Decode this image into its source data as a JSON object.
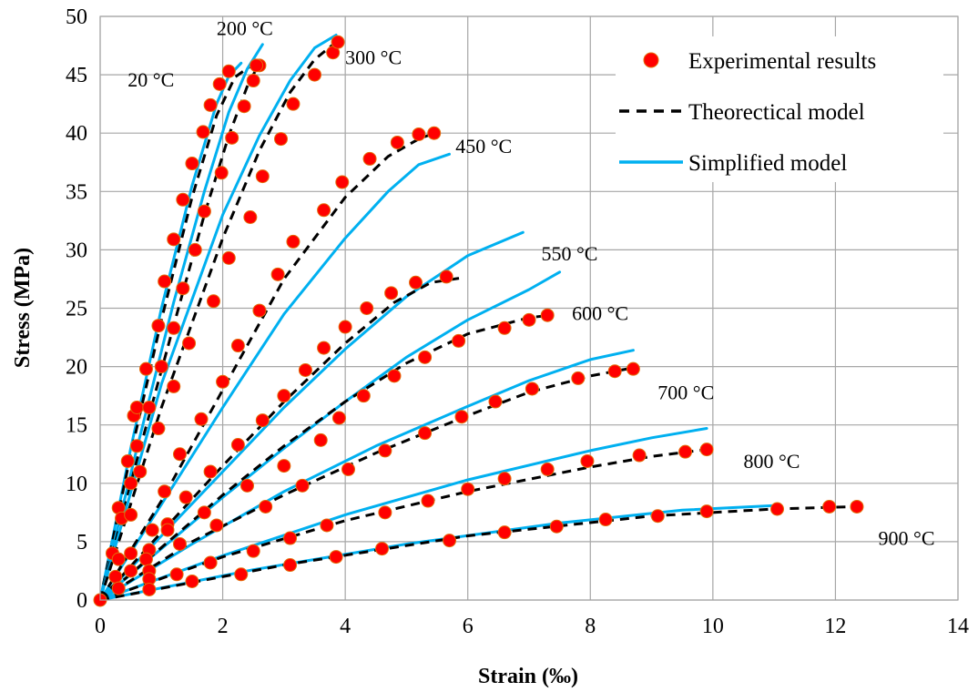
{
  "chart_data": {
    "type": "scatter",
    "title": "",
    "xlabel": "Strain (‰)",
    "ylabel": "Stress (MPa)",
    "xlim": [
      0,
      14
    ],
    "ylim": [
      0,
      50
    ],
    "xticks": [
      0,
      2,
      4,
      6,
      8,
      10,
      12,
      14
    ],
    "yticks": [
      0,
      5,
      10,
      15,
      20,
      25,
      30,
      35,
      40,
      45,
      50
    ],
    "grid": true,
    "legend_position": "top-right",
    "legend": [
      {
        "label": "Experimental results",
        "style": "marker"
      },
      {
        "label": "Theorectical model",
        "style": "dashed"
      },
      {
        "label": "Simplified model",
        "style": "solid"
      }
    ],
    "colors": {
      "experimental": "#ff0000",
      "experimental_edge": "#e36c09",
      "theoretical": "#000000",
      "simplified": "#00b0f0",
      "grid": "#a6a6a6"
    },
    "curve_labels": [
      {
        "text": "20 °C",
        "x": 0.45,
        "y": 44.0
      },
      {
        "text": "200 °C",
        "x": 1.9,
        "y": 48.4
      },
      {
        "text": "300 °C",
        "x": 4.0,
        "y": 45.9
      },
      {
        "text": "450 °C",
        "x": 5.8,
        "y": 38.3
      },
      {
        "text": "550 °C",
        "x": 7.2,
        "y": 29.1
      },
      {
        "text": "600 °C",
        "x": 7.7,
        "y": 24.0
      },
      {
        "text": "700 °C",
        "x": 9.1,
        "y": 17.2
      },
      {
        "text": "800 °C",
        "x": 10.5,
        "y": 11.3
      },
      {
        "text": "900 °C",
        "x": 12.7,
        "y": 4.7
      }
    ],
    "series": [
      {
        "temperature": "20 °C",
        "experimental": [
          [
            0,
            0
          ],
          [
            0.2,
            4.0
          ],
          [
            0.3,
            7.9
          ],
          [
            0.45,
            11.9
          ],
          [
            0.55,
            15.8
          ],
          [
            0.6,
            16.5
          ],
          [
            0.75,
            19.8
          ],
          [
            0.95,
            23.5
          ],
          [
            1.05,
            27.3
          ],
          [
            1.2,
            30.9
          ],
          [
            1.35,
            34.3
          ],
          [
            1.5,
            37.4
          ],
          [
            1.68,
            40.1
          ],
          [
            1.8,
            42.4
          ],
          [
            1.95,
            44.2
          ],
          [
            2.1,
            45.3
          ],
          [
            2.6,
            45.8
          ]
        ],
        "theoretical": [
          [
            0,
            0
          ],
          [
            0.5,
            12.5
          ],
          [
            1.0,
            24.0
          ],
          [
            1.5,
            34.5
          ],
          [
            1.9,
            41.5
          ],
          [
            2.2,
            44.8
          ],
          [
            2.5,
            45.9
          ]
        ],
        "simplified": [
          [
            0,
            0
          ],
          [
            0.5,
            13.0
          ],
          [
            1.0,
            25.0
          ],
          [
            1.5,
            35.5
          ],
          [
            1.9,
            42.5
          ],
          [
            2.1,
            44.9
          ],
          [
            2.3,
            46.0
          ]
        ]
      },
      {
        "temperature": "200 °C",
        "experimental": [
          [
            0.35,
            7.0
          ],
          [
            0.5,
            10.0
          ],
          [
            0.6,
            13.2
          ],
          [
            0.8,
            16.5
          ],
          [
            1.0,
            20.0
          ],
          [
            1.2,
            23.3
          ],
          [
            1.35,
            26.7
          ],
          [
            1.55,
            30.0
          ],
          [
            1.7,
            33.3
          ],
          [
            1.98,
            36.6
          ],
          [
            2.15,
            39.6
          ],
          [
            2.35,
            42.3
          ],
          [
            2.5,
            44.5
          ],
          [
            2.55,
            45.8
          ]
        ],
        "theoretical": [
          [
            0,
            0
          ],
          [
            0.6,
            12.0
          ],
          [
            1.2,
            23.5
          ],
          [
            1.7,
            33.0
          ],
          [
            2.1,
            39.8
          ],
          [
            2.4,
            44.0
          ],
          [
            2.55,
            45.5
          ]
        ],
        "simplified": [
          [
            0,
            0
          ],
          [
            0.6,
            13.0
          ],
          [
            1.2,
            25.5
          ],
          [
            1.7,
            35.0
          ],
          [
            2.1,
            41.8
          ],
          [
            2.4,
            45.5
          ],
          [
            2.65,
            47.6
          ]
        ]
      },
      {
        "temperature": "300 °C",
        "experimental": [
          [
            0.3,
            3.5
          ],
          [
            0.5,
            7.3
          ],
          [
            0.65,
            11.0
          ],
          [
            0.95,
            14.7
          ],
          [
            1.2,
            18.3
          ],
          [
            1.45,
            22.0
          ],
          [
            1.85,
            25.6
          ],
          [
            2.1,
            29.3
          ],
          [
            2.45,
            32.8
          ],
          [
            2.65,
            36.3
          ],
          [
            2.95,
            39.5
          ],
          [
            3.15,
            42.5
          ],
          [
            3.5,
            45.0
          ],
          [
            3.8,
            46.9
          ],
          [
            3.88,
            47.8
          ]
        ],
        "theoretical": [
          [
            0,
            0
          ],
          [
            1.0,
            16.5
          ],
          [
            2.0,
            31.0
          ],
          [
            2.6,
            38.5
          ],
          [
            3.1,
            43.5
          ],
          [
            3.5,
            46.3
          ],
          [
            3.85,
            47.8
          ]
        ],
        "simplified": [
          [
            0,
            0
          ],
          [
            1.0,
            18.5
          ],
          [
            2.0,
            33.0
          ],
          [
            2.6,
            39.8
          ],
          [
            3.1,
            44.5
          ],
          [
            3.5,
            47.3
          ],
          [
            3.85,
            48.4
          ]
        ]
      },
      {
        "temperature": "450 °C",
        "experimental": [
          [
            0.25,
            2.0
          ],
          [
            0.5,
            4.0
          ],
          [
            0.85,
            6.0
          ],
          [
            1.05,
            9.3
          ],
          [
            1.3,
            12.5
          ],
          [
            1.65,
            15.5
          ],
          [
            2.0,
            18.7
          ],
          [
            2.25,
            21.8
          ],
          [
            2.6,
            24.8
          ],
          [
            2.9,
            27.9
          ],
          [
            3.15,
            30.7
          ],
          [
            3.65,
            33.4
          ],
          [
            3.95,
            35.8
          ],
          [
            4.4,
            37.8
          ],
          [
            4.85,
            39.2
          ],
          [
            5.2,
            39.9
          ],
          [
            5.45,
            40.0
          ]
        ],
        "theoretical": [
          [
            0,
            0
          ],
          [
            1.0,
            8.5
          ],
          [
            2.0,
            18.0
          ],
          [
            3.0,
            27.5
          ],
          [
            4.0,
            34.5
          ],
          [
            4.7,
            38.0
          ],
          [
            5.2,
            39.5
          ],
          [
            5.45,
            40.0
          ]
        ],
        "simplified": [
          [
            0,
            0
          ],
          [
            1.0,
            8.2
          ],
          [
            2.0,
            16.5
          ],
          [
            3.0,
            24.5
          ],
          [
            4.0,
            31.0
          ],
          [
            4.7,
            35.0
          ],
          [
            5.2,
            37.3
          ],
          [
            5.7,
            38.2
          ]
        ]
      },
      {
        "temperature": "550 °C",
        "experimental": [
          [
            0.3,
            1.0
          ],
          [
            0.5,
            2.5
          ],
          [
            0.8,
            4.3
          ],
          [
            1.1,
            6.5
          ],
          [
            1.4,
            8.8
          ],
          [
            1.8,
            11.0
          ],
          [
            2.25,
            13.3
          ],
          [
            2.65,
            15.4
          ],
          [
            3.0,
            17.5
          ],
          [
            3.35,
            19.7
          ],
          [
            3.65,
            21.6
          ],
          [
            4.0,
            23.4
          ],
          [
            4.35,
            25.0
          ],
          [
            4.75,
            26.3
          ],
          [
            5.15,
            27.2
          ],
          [
            5.65,
            27.7
          ]
        ],
        "theoretical": [
          [
            0,
            0
          ],
          [
            1.0,
            5.8
          ],
          [
            2.0,
            11.5
          ],
          [
            3.0,
            17.0
          ],
          [
            4.0,
            22.0
          ],
          [
            4.8,
            25.5
          ],
          [
            5.4,
            27.2
          ],
          [
            5.9,
            27.6
          ]
        ],
        "simplified": [
          [
            0,
            0
          ],
          [
            1.0,
            5.5
          ],
          [
            2.0,
            11.0
          ],
          [
            3.0,
            16.5
          ],
          [
            4.0,
            21.5
          ],
          [
            5.0,
            26.0
          ],
          [
            6.0,
            29.5
          ],
          [
            6.9,
            31.5
          ]
        ]
      },
      {
        "temperature": "600 °C",
        "experimental": [
          [
            0.75,
            3.5
          ],
          [
            1.1,
            6.0
          ],
          [
            1.7,
            7.5
          ],
          [
            2.4,
            9.8
          ],
          [
            3.0,
            11.5
          ],
          [
            3.6,
            13.7
          ],
          [
            3.9,
            15.6
          ],
          [
            4.3,
            17.5
          ],
          [
            4.8,
            19.2
          ],
          [
            5.3,
            20.8
          ],
          [
            5.85,
            22.2
          ],
          [
            6.6,
            23.3
          ],
          [
            7.0,
            24.0
          ],
          [
            7.3,
            24.4
          ]
        ],
        "theoretical": [
          [
            0,
            0
          ],
          [
            1.0,
            4.5
          ],
          [
            2.0,
            9.0
          ],
          [
            3.0,
            13.2
          ],
          [
            4.0,
            17.0
          ],
          [
            5.0,
            20.3
          ],
          [
            6.0,
            22.8
          ],
          [
            7.0,
            24.2
          ],
          [
            7.35,
            24.4
          ]
        ],
        "simplified": [
          [
            0,
            0
          ],
          [
            1.0,
            4.4
          ],
          [
            2.0,
            8.8
          ],
          [
            3.0,
            13.0
          ],
          [
            4.0,
            17.0
          ],
          [
            5.0,
            20.8
          ],
          [
            6.0,
            24.0
          ],
          [
            7.0,
            26.6
          ],
          [
            7.5,
            28.1
          ]
        ]
      },
      {
        "temperature": "700 °C",
        "experimental": [
          [
            0.8,
            2.5
          ],
          [
            1.3,
            4.8
          ],
          [
            1.9,
            6.4
          ],
          [
            2.7,
            8.0
          ],
          [
            3.3,
            9.8
          ],
          [
            4.05,
            11.2
          ],
          [
            4.65,
            12.8
          ],
          [
            5.3,
            14.3
          ],
          [
            5.9,
            15.7
          ],
          [
            6.45,
            17.0
          ],
          [
            7.05,
            18.1
          ],
          [
            7.8,
            19.0
          ],
          [
            8.4,
            19.6
          ],
          [
            8.7,
            19.8
          ]
        ],
        "theoretical": [
          [
            0,
            0
          ],
          [
            1.5,
            5.0
          ],
          [
            3.0,
            9.0
          ],
          [
            4.5,
            12.6
          ],
          [
            6.0,
            15.8
          ],
          [
            7.0,
            17.8
          ],
          [
            8.0,
            19.2
          ],
          [
            8.7,
            19.9
          ]
        ],
        "simplified": [
          [
            0,
            0
          ],
          [
            1.5,
            4.8
          ],
          [
            3.0,
            9.3
          ],
          [
            4.5,
            13.2
          ],
          [
            6.0,
            16.6
          ],
          [
            7.0,
            18.8
          ],
          [
            8.0,
            20.6
          ],
          [
            8.7,
            21.4
          ]
        ]
      },
      {
        "temperature": "800 °C",
        "experimental": [
          [
            0.8,
            1.8
          ],
          [
            1.25,
            2.2
          ],
          [
            1.8,
            3.2
          ],
          [
            2.5,
            4.2
          ],
          [
            3.1,
            5.3
          ],
          [
            3.7,
            6.4
          ],
          [
            4.65,
            7.5
          ],
          [
            5.35,
            8.5
          ],
          [
            6.0,
            9.5
          ],
          [
            6.6,
            10.4
          ],
          [
            7.3,
            11.2
          ],
          [
            7.95,
            11.9
          ],
          [
            8.8,
            12.4
          ],
          [
            9.55,
            12.7
          ],
          [
            9.9,
            12.9
          ]
        ],
        "theoretical": [
          [
            0,
            0
          ],
          [
            2.0,
            3.7
          ],
          [
            4.0,
            6.8
          ],
          [
            6.0,
            9.3
          ],
          [
            8.0,
            11.4
          ],
          [
            9.0,
            12.3
          ],
          [
            9.9,
            12.9
          ]
        ],
        "simplified": [
          [
            0,
            0
          ],
          [
            2.0,
            3.8
          ],
          [
            4.0,
            7.3
          ],
          [
            6.0,
            10.3
          ],
          [
            8.0,
            12.8
          ],
          [
            9.0,
            13.9
          ],
          [
            9.9,
            14.7
          ]
        ]
      },
      {
        "temperature": "900 °C",
        "experimental": [
          [
            0.8,
            0.9
          ],
          [
            1.5,
            1.6
          ],
          [
            2.3,
            2.2
          ],
          [
            3.1,
            3.0
          ],
          [
            3.85,
            3.7
          ],
          [
            4.6,
            4.4
          ],
          [
            5.7,
            5.1
          ],
          [
            6.6,
            5.8
          ],
          [
            7.45,
            6.3
          ],
          [
            8.25,
            6.9
          ],
          [
            9.1,
            7.2
          ],
          [
            9.9,
            7.6
          ],
          [
            11.05,
            7.8
          ],
          [
            11.9,
            8.0
          ],
          [
            12.35,
            8.0
          ]
        ],
        "theoretical": [
          [
            0,
            0
          ],
          [
            3.0,
            3.0
          ],
          [
            6.0,
            5.5
          ],
          [
            9.0,
            7.2
          ],
          [
            11.0,
            7.8
          ],
          [
            12.35,
            8.0
          ]
        ],
        "simplified": [
          [
            0,
            0
          ],
          [
            2.5,
            2.6
          ],
          [
            5.0,
            4.8
          ],
          [
            7.5,
            6.6
          ],
          [
            9.5,
            7.7
          ],
          [
            11.0,
            8.1
          ]
        ]
      }
    ]
  }
}
